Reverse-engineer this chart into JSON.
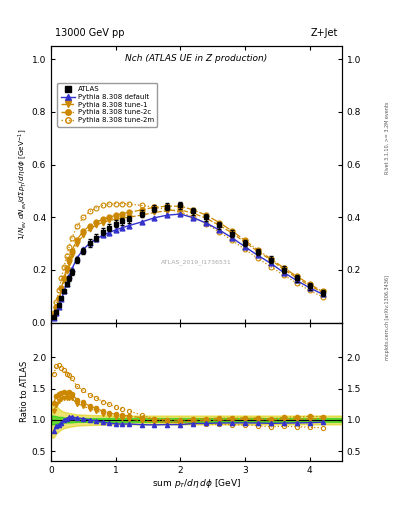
{
  "title_main": "Nch (ATLAS UE in Z production)",
  "header_left": "13000 GeV pp",
  "header_right": "Z+Jet",
  "ylabel_main": "1/N_{ev} dN_{ev}/dsum p_{T}/d#eta d#phi  [GeV^{-1}]",
  "ylabel_ratio": "Ratio to ATLAS",
  "xlabel": "sum p_{T}/d#eta d#phi  [GeV]",
  "watermark": "ATLAS_2019_I1736531",
  "rivet_text": "Rivet 3.1.10, >= 3.2M events",
  "mcplots_text": "mcplots.cern.ch [arXiv:1306.3436]",
  "xlim": [
    0,
    4.5
  ],
  "ylim_main": [
    0,
    1.05
  ],
  "ylim_ratio": [
    0.35,
    2.55
  ],
  "yticks_main": [
    0,
    0.2,
    0.4,
    0.6,
    0.8,
    1.0
  ],
  "yticks_ratio": [
    0.5,
    1.0,
    1.5,
    2.0
  ],
  "xticks": [
    0,
    1,
    2,
    3,
    4
  ],
  "atlas_x": [
    0.04,
    0.08,
    0.12,
    0.16,
    0.2,
    0.24,
    0.28,
    0.32,
    0.4,
    0.5,
    0.6,
    0.7,
    0.8,
    0.9,
    1.0,
    1.1,
    1.2,
    1.4,
    1.6,
    1.8,
    2.0,
    2.2,
    2.4,
    2.6,
    2.8,
    3.0,
    3.2,
    3.4,
    3.6,
    3.8,
    4.0,
    4.2
  ],
  "atlas_y": [
    0.022,
    0.042,
    0.065,
    0.092,
    0.118,
    0.145,
    0.168,
    0.192,
    0.238,
    0.272,
    0.302,
    0.322,
    0.345,
    0.36,
    0.375,
    0.385,
    0.393,
    0.413,
    0.432,
    0.44,
    0.445,
    0.422,
    0.4,
    0.37,
    0.338,
    0.302,
    0.268,
    0.238,
    0.2,
    0.168,
    0.138,
    0.112
  ],
  "atlas_err": [
    0.003,
    0.004,
    0.005,
    0.006,
    0.007,
    0.008,
    0.009,
    0.01,
    0.012,
    0.013,
    0.014,
    0.013,
    0.013,
    0.013,
    0.013,
    0.013,
    0.013,
    0.013,
    0.013,
    0.013,
    0.013,
    0.013,
    0.013,
    0.013,
    0.013,
    0.013,
    0.013,
    0.013,
    0.013,
    0.013,
    0.013,
    0.013
  ],
  "default_x": [
    0.04,
    0.08,
    0.12,
    0.16,
    0.2,
    0.24,
    0.28,
    0.32,
    0.4,
    0.5,
    0.6,
    0.7,
    0.8,
    0.9,
    1.0,
    1.1,
    1.2,
    1.4,
    1.6,
    1.8,
    2.0,
    2.2,
    2.4,
    2.6,
    2.8,
    3.0,
    3.2,
    3.4,
    3.6,
    3.8,
    4.0,
    4.2
  ],
  "default_y": [
    0.018,
    0.038,
    0.06,
    0.088,
    0.118,
    0.148,
    0.175,
    0.202,
    0.245,
    0.278,
    0.302,
    0.318,
    0.332,
    0.342,
    0.352,
    0.36,
    0.368,
    0.382,
    0.398,
    0.408,
    0.412,
    0.398,
    0.378,
    0.352,
    0.322,
    0.288,
    0.255,
    0.225,
    0.19,
    0.16,
    0.132,
    0.108
  ],
  "tune1_x": [
    0.04,
    0.08,
    0.12,
    0.16,
    0.2,
    0.24,
    0.28,
    0.32,
    0.4,
    0.5,
    0.6,
    0.7,
    0.8,
    0.9,
    1.0,
    1.1,
    1.2,
    1.4,
    1.6,
    1.8,
    2.0,
    2.2,
    2.4,
    2.6,
    2.8,
    3.0,
    3.2,
    3.4,
    3.6,
    3.8,
    4.0,
    4.2
  ],
  "tune1_y": [
    0.025,
    0.052,
    0.085,
    0.122,
    0.16,
    0.195,
    0.228,
    0.258,
    0.3,
    0.332,
    0.355,
    0.37,
    0.38,
    0.388,
    0.392,
    0.396,
    0.4,
    0.408,
    0.418,
    0.425,
    0.428,
    0.415,
    0.396,
    0.37,
    0.34,
    0.305,
    0.27,
    0.238,
    0.202,
    0.17,
    0.14,
    0.115
  ],
  "tune2c_x": [
    0.04,
    0.08,
    0.12,
    0.16,
    0.2,
    0.24,
    0.28,
    0.32,
    0.4,
    0.5,
    0.6,
    0.7,
    0.8,
    0.9,
    1.0,
    1.1,
    1.2,
    1.4,
    1.6,
    1.8,
    2.0,
    2.2,
    2.4,
    2.6,
    2.8,
    3.0,
    3.2,
    3.4,
    3.6,
    3.8,
    4.0,
    4.2
  ],
  "tune2c_y": [
    0.028,
    0.058,
    0.092,
    0.132,
    0.17,
    0.208,
    0.242,
    0.272,
    0.315,
    0.348,
    0.368,
    0.382,
    0.392,
    0.4,
    0.408,
    0.414,
    0.418,
    0.428,
    0.438,
    0.442,
    0.442,
    0.428,
    0.408,
    0.38,
    0.348,
    0.312,
    0.276,
    0.242,
    0.208,
    0.176,
    0.146,
    0.118
  ],
  "tune2m_x": [
    0.04,
    0.08,
    0.12,
    0.16,
    0.2,
    0.24,
    0.28,
    0.32,
    0.4,
    0.5,
    0.6,
    0.7,
    0.8,
    0.9,
    1.0,
    1.1,
    1.2,
    1.4,
    1.6,
    1.8,
    2.0,
    2.2,
    2.4,
    2.6,
    2.8,
    3.0,
    3.2,
    3.4,
    3.6,
    3.8,
    4.0,
    4.2
  ],
  "tune2m_y": [
    0.038,
    0.078,
    0.122,
    0.168,
    0.212,
    0.252,
    0.288,
    0.32,
    0.365,
    0.4,
    0.422,
    0.436,
    0.445,
    0.45,
    0.452,
    0.452,
    0.45,
    0.445,
    0.438,
    0.43,
    0.42,
    0.4,
    0.375,
    0.345,
    0.312,
    0.278,
    0.244,
    0.212,
    0.18,
    0.15,
    0.122,
    0.098
  ],
  "green_band_x": [
    0.0,
    0.04,
    0.08,
    0.12,
    0.16,
    0.2,
    0.28,
    0.4,
    0.6,
    1.0,
    1.5,
    2.0,
    2.5,
    3.0,
    3.5,
    4.0,
    4.5
  ],
  "green_band_lo": [
    0.93,
    0.93,
    0.94,
    0.95,
    0.95,
    0.96,
    0.96,
    0.97,
    0.97,
    0.97,
    0.97,
    0.97,
    0.97,
    0.97,
    0.97,
    0.97,
    0.97
  ],
  "green_band_hi": [
    1.07,
    1.07,
    1.06,
    1.05,
    1.05,
    1.04,
    1.04,
    1.03,
    1.03,
    1.03,
    1.03,
    1.03,
    1.03,
    1.03,
    1.03,
    1.03,
    1.03
  ],
  "yellow_band_x": [
    0.0,
    0.04,
    0.08,
    0.12,
    0.16,
    0.2,
    0.28,
    0.4,
    0.6,
    1.0,
    1.5,
    2.0,
    2.5,
    3.0,
    3.5,
    4.0,
    4.5
  ],
  "yellow_band_lo": [
    0.72,
    0.72,
    0.78,
    0.82,
    0.85,
    0.87,
    0.89,
    0.91,
    0.92,
    0.93,
    0.93,
    0.93,
    0.93,
    0.93,
    0.93,
    0.93,
    0.93
  ],
  "yellow_band_hi": [
    1.28,
    1.28,
    1.22,
    1.18,
    1.15,
    1.13,
    1.11,
    1.09,
    1.08,
    1.07,
    1.07,
    1.07,
    1.07,
    1.07,
    1.07,
    1.07,
    1.07
  ],
  "color_atlas": "#000000",
  "color_default": "#3333cc",
  "color_tune1": "#cc8800",
  "color_tune2c": "#cc8800",
  "color_tune2m": "#cc8800",
  "color_green": "#00cc00",
  "color_yellow": "#ddcc00",
  "bg_color": "#ffffff"
}
